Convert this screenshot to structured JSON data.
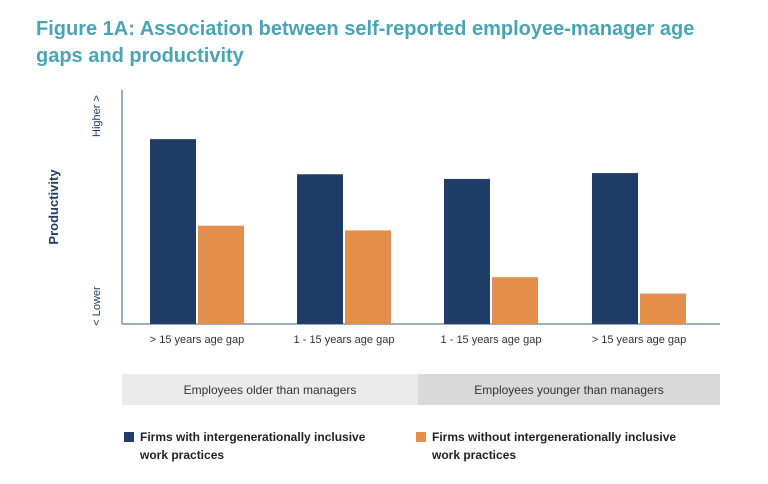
{
  "title": "Figure 1A: Association between self-reported employee-manager age gaps and productivity",
  "chart_data": {
    "type": "bar",
    "ylabel": "Productivity",
    "y_high_label": "Higher >",
    "y_low_label": "< Lower",
    "ylim": [
      0,
      100
    ],
    "grid": false,
    "categories": [
      "> 15 years age gap",
      "1 - 15 years age gap",
      "1 - 15 years age gap",
      "> 15 years age gap"
    ],
    "category_groups": [
      {
        "label": "Employees older than managers",
        "color": "#ebebeb"
      },
      {
        "label": "Employees younger than managers",
        "color": "#d9d9d9"
      }
    ],
    "series": [
      {
        "name": "Firms with intergenerationally inclusive work practices",
        "color": "#1f3d66",
        "values": [
          79,
          64,
          62,
          64.5
        ]
      },
      {
        "name": "Firms without intergenerationally inclusive work practices",
        "color": "#e38f4b",
        "values": [
          42,
          40,
          20,
          13
        ]
      }
    ],
    "legend_position": "bottom"
  }
}
